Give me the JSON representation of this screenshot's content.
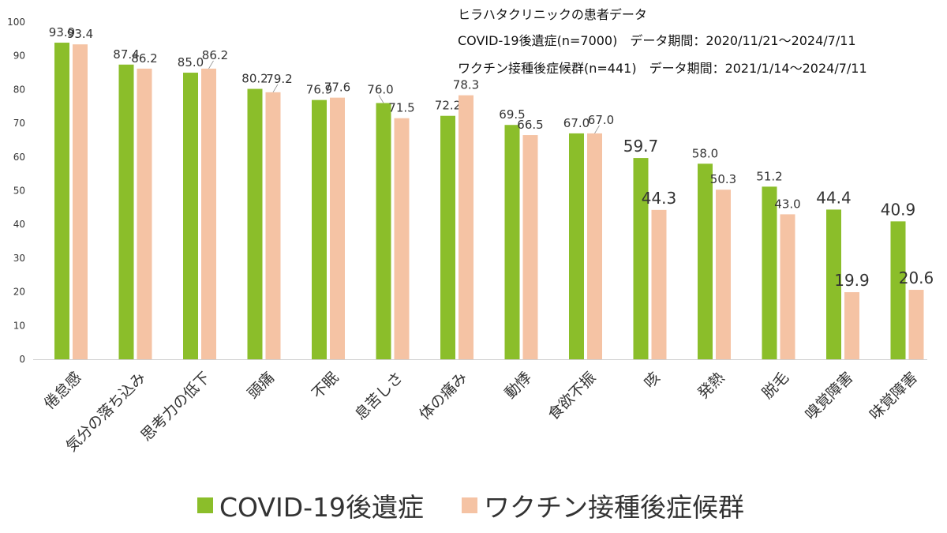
{
  "header": {
    "title": "ヒラハタクリニックの患者データ",
    "line1": "COVID-19後遺症(n=7000)　データ期間：2020/11/21～2024/7/11",
    "line2": "ワクチン接種後症候群(n=441)　データ期間：2021/1/14～2024/7/11"
  },
  "colors": {
    "covid": "#8BBE2A",
    "vaccine": "#F5C3A4"
  },
  "chart_data": {
    "type": "bar",
    "title": "",
    "xlabel": "",
    "ylabel": "",
    "ylim": [
      0,
      100
    ],
    "yticks": [
      0,
      10,
      20,
      30,
      40,
      50,
      60,
      70,
      80,
      90,
      100
    ],
    "grid": false,
    "legend_position": "bottom",
    "categories": [
      "倦怠感",
      "気分の落ち込み",
      "思考力の低下",
      "頭痛",
      "不眠",
      "息苦しさ",
      "体の痛み",
      "動悸",
      "食欲不振",
      "咳",
      "発熱",
      "脱毛",
      "嗅覚障害",
      "味覚障害"
    ],
    "series": [
      {
        "name": "COVID-19後遺症",
        "values": [
          93.9,
          87.4,
          85.0,
          80.2,
          76.9,
          76.0,
          72.2,
          69.5,
          67.0,
          59.7,
          58.0,
          51.2,
          44.4,
          40.9
        ]
      },
      {
        "name": "ワクチン接種後症候群",
        "values": [
          93.4,
          86.2,
          86.2,
          79.2,
          77.6,
          71.5,
          78.3,
          66.5,
          67.0,
          44.3,
          50.3,
          43.0,
          19.9,
          20.6
        ]
      }
    ],
    "value_labels": [
      [
        "93.9",
        "87.4",
        "85.0",
        "80.2",
        "76.9",
        "76.0",
        "72.2",
        "69.5",
        "67.0",
        "59.7",
        "58.0",
        "51.2",
        "44.4",
        "40.9"
      ],
      [
        "93.4",
        "86.2",
        "86.2",
        "79.2",
        "77.6",
        "71.5",
        "78.3",
        "66.5",
        "67.0",
        "44.3",
        "50.3",
        "43.0",
        "19.9",
        "20.6"
      ]
    ]
  }
}
